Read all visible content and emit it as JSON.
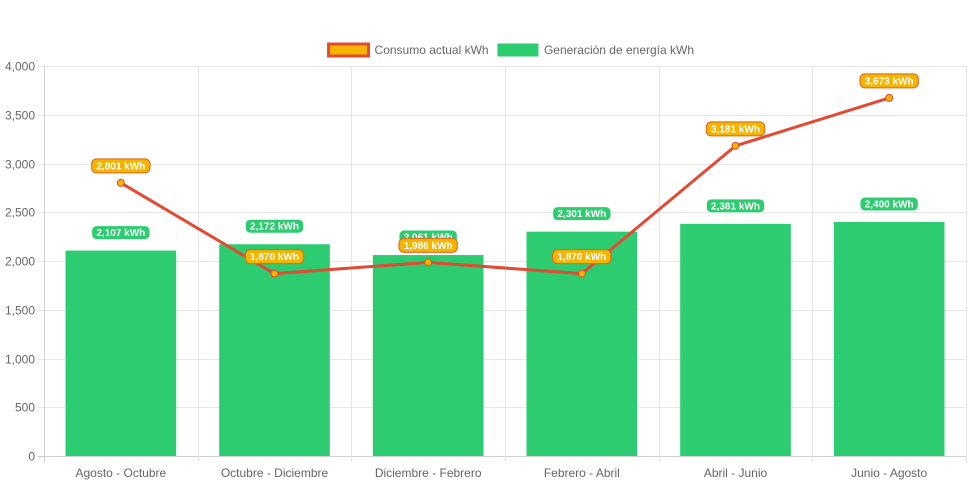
{
  "chart_data": {
    "type": "bar",
    "categories": [
      "Agosto - Octubre",
      "Octubre - Diciembre",
      "Diciembre - Febrero",
      "Febrero - Abril",
      "Abril - Junio",
      "Junio - Agosto"
    ],
    "series": [
      {
        "name": "Consumo actual kWh",
        "type": "line",
        "values": [
          2801,
          1870,
          1986,
          1870,
          3181,
          3673
        ],
        "labels": [
          "2,801 kWh",
          "1,870 kWh",
          "1,986 kWh",
          "1,870 kWh",
          "3,181 kWh",
          "3,673 kWh"
        ],
        "color": "#e24a33",
        "fill_color": "#f5b400"
      },
      {
        "name": "Generación de energía kWh",
        "type": "bar",
        "values": [
          2107,
          2172,
          2061,
          2301,
          2381,
          2400
        ],
        "labels": [
          "2,107 kWh",
          "2,172 kWh",
          "2,061 kWh",
          "2,301 kWh",
          "2,381 kWh",
          "2,400 kWh"
        ],
        "color": "#2ecc71"
      }
    ],
    "ylim": [
      0,
      4000
    ],
    "yticks": [
      0,
      500,
      1000,
      1500,
      2000,
      2500,
      3000,
      3500,
      4000
    ],
    "ytick_labels": [
      "0",
      "500",
      "1,000",
      "1,500",
      "2,000",
      "2,500",
      "3,000",
      "3,500",
      "4,000"
    ],
    "title": "",
    "xlabel": "",
    "ylabel": "",
    "grid": true,
    "legend_position": "top-center"
  }
}
